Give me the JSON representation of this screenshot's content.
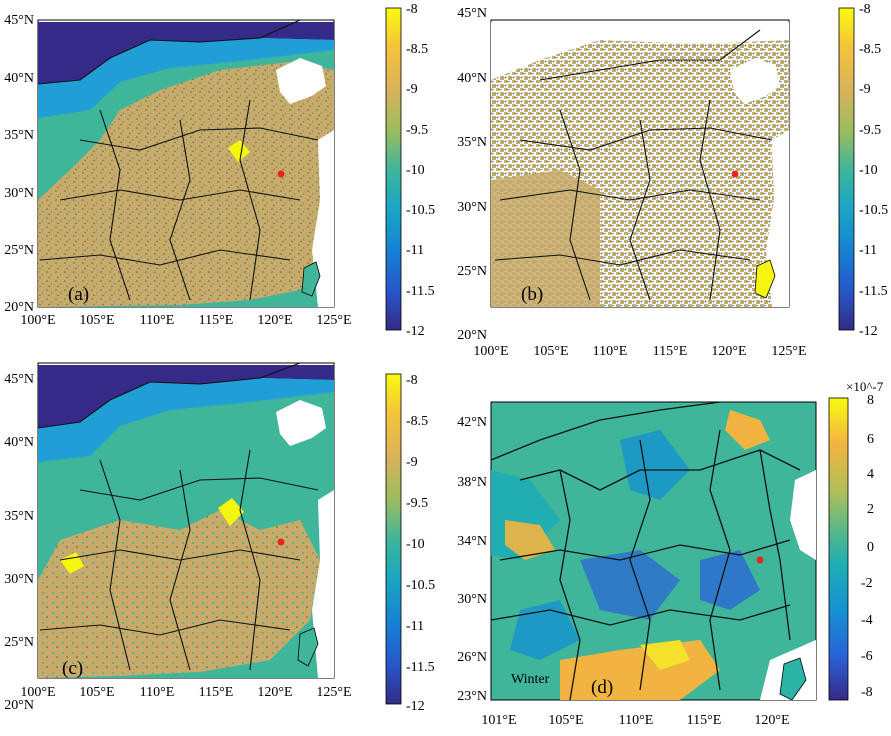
{
  "colors": {
    "low": "#352a87",
    "blue": "#1f63d6",
    "cyan": "#17a6c9",
    "green": "#3fb59a",
    "olive": "#b9a86a",
    "tan": "#c8aa6b",
    "orange": "#f2b440",
    "yellow": "#f5f50e",
    "water": "#ffffff",
    "marker": "#e8261d"
  },
  "panels": [
    {
      "label": "(a)",
      "x_ticks": [
        "100°E",
        "105°E",
        "110°E",
        "115°E",
        "120°E",
        "125°E"
      ],
      "y_ticks": [
        "20°N",
        "25°N",
        "30°N",
        "35°N",
        "40°N",
        "45°N"
      ],
      "colorbar_ticks": [
        "-8",
        "-8.5",
        "-9",
        "-9.5",
        "-10",
        "-10.5",
        "-11",
        "-11.5",
        "-12"
      ]
    },
    {
      "label": "(b)",
      "x_ticks": [
        "100°E",
        "105°E",
        "110°E",
        "115°E",
        "120°E",
        "125°E"
      ],
      "y_ticks": [
        "20°N",
        "25°N",
        "30°N",
        "35°N",
        "40°N",
        "45°N"
      ],
      "colorbar_ticks": [
        "-8",
        "-8.5",
        "-9",
        "-9.5",
        "-10",
        "-10.5",
        "-11",
        "-11.5",
        "-12"
      ]
    },
    {
      "label": "(c)",
      "x_ticks": [
        "100°E",
        "105°E",
        "110°E",
        "115°E",
        "120°E",
        "125°E"
      ],
      "y_ticks": [
        "20°N",
        "25°N",
        "30°N",
        "35°N",
        "40°N",
        "45°N"
      ],
      "colorbar_ticks": [
        "-8",
        "-8.5",
        "-9",
        "-9.5",
        "-10",
        "-10.5",
        "-11",
        "-11.5",
        "-12"
      ]
    },
    {
      "label": "(d)",
      "annotation": "Winter",
      "x_ticks": [
        "101°E",
        "105°E",
        "110°E",
        "115°E",
        "120°E"
      ],
      "y_ticks": [
        "23°N",
        "26°N",
        "30°N",
        "34°N",
        "38°N",
        "42°N"
      ],
      "colorbar_exponent": "×10^-7",
      "colorbar_ticks": [
        "8",
        "6",
        "4",
        "2",
        "0",
        "-2",
        "-4",
        "-6",
        "-8"
      ]
    }
  ]
}
